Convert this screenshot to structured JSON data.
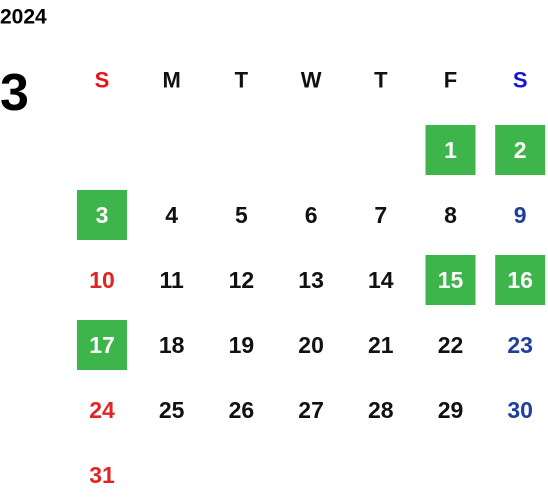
{
  "year": "2024",
  "month": "3",
  "weekdays": [
    "S",
    "M",
    "T",
    "W",
    "T",
    "F",
    "S"
  ],
  "weeks": [
    [
      null,
      null,
      null,
      null,
      null,
      {
        "day": 1,
        "highlighted": true
      },
      {
        "day": 2,
        "highlighted": true
      }
    ],
    [
      {
        "day": 3,
        "highlighted": true
      },
      {
        "day": 4
      },
      {
        "day": 5
      },
      {
        "day": 6
      },
      {
        "day": 7
      },
      {
        "day": 8
      },
      {
        "day": 9
      }
    ],
    [
      {
        "day": 10
      },
      {
        "day": 11
      },
      {
        "day": 12
      },
      {
        "day": 13
      },
      {
        "day": 14
      },
      {
        "day": 15,
        "highlighted": true
      },
      {
        "day": 16,
        "highlighted": true
      }
    ],
    [
      {
        "day": 17,
        "highlighted": true
      },
      {
        "day": 18
      },
      {
        "day": 19
      },
      {
        "day": 20
      },
      {
        "day": 21
      },
      {
        "day": 22
      },
      {
        "day": 23
      }
    ],
    [
      {
        "day": 24
      },
      {
        "day": 25
      },
      {
        "day": 26
      },
      {
        "day": 27
      },
      {
        "day": 28
      },
      {
        "day": 29
      },
      {
        "day": 30
      }
    ],
    [
      {
        "day": 31
      }
    ]
  ],
  "colors": {
    "sunday_header": "#e8141c",
    "saturday_header": "#1414d2",
    "sunday": "#e02424",
    "saturday": "#1f3f9a",
    "weekday": "#111111",
    "highlight": "#3db54a",
    "highlight_text": "#ffffff"
  }
}
